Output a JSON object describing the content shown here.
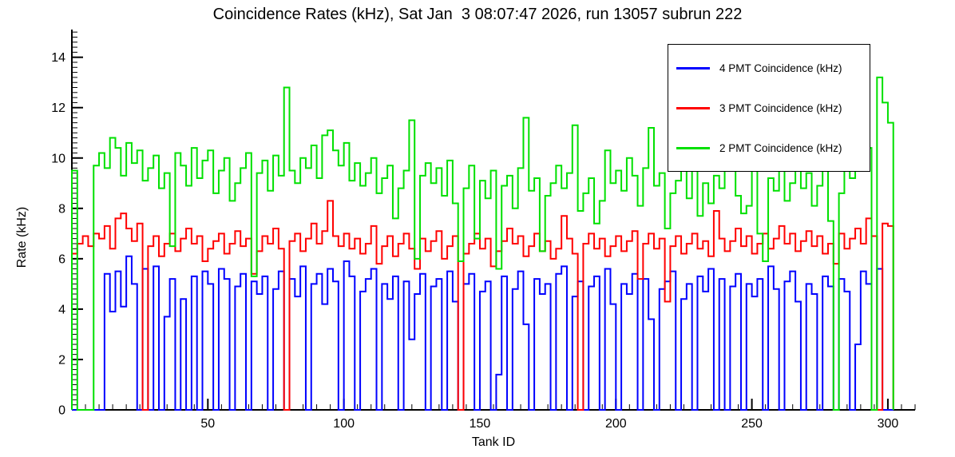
{
  "chart_data": {
    "type": "line",
    "subtype": "step-histogram",
    "title": "Coincidence Rates (kHz), Sat Jan  3 08:07:47 2026, run 13057 subrun 222",
    "xlabel": "Tank ID",
    "ylabel": "Rate (kHz)",
    "xlim": [
      0,
      310
    ],
    "ylim": [
      0,
      15.1
    ],
    "x_ticks_major": [
      50,
      100,
      150,
      200,
      250,
      300
    ],
    "x_minor_step": 5,
    "y_ticks_major": [
      0,
      2,
      4,
      6,
      8,
      10,
      12,
      14
    ],
    "y_minor_step": 0.2,
    "grid": false,
    "legend_position": "top-right",
    "bins": {
      "x_start": 0,
      "x_step": 2,
      "count": 151
    },
    "series": [
      {
        "name": "4 PMT Coincidence (kHz)",
        "color": "#0000ff",
        "values": [
          0,
          0,
          0,
          0,
          0,
          0,
          5.4,
          3.9,
          5.5,
          4.1,
          6.1,
          5.0,
          0,
          5.6,
          0,
          5.7,
          0,
          3.7,
          5.2,
          0,
          4.4,
          0,
          5.3,
          0,
          5.5,
          5.0,
          0,
          5.6,
          5.2,
          0,
          4.9,
          5.4,
          0,
          5.1,
          4.6,
          5.3,
          0,
          4.8,
          5.5,
          0,
          5.2,
          4.5,
          5.7,
          0,
          5.0,
          5.4,
          4.2,
          5.6,
          5.1,
          0,
          5.9,
          5.3,
          0,
          4.7,
          5.2,
          5.6,
          0,
          5.0,
          4.4,
          5.3,
          0,
          5.1,
          2.8,
          4.6,
          5.4,
          0,
          4.9,
          5.2,
          0,
          5.5,
          4.3,
          0,
          5.0,
          5.4,
          0,
          4.7,
          5.1,
          0,
          1.4,
          5.3,
          0,
          4.8,
          5.5,
          3.4,
          0,
          5.2,
          4.6,
          5.0,
          0,
          5.4,
          5.7,
          0,
          4.5,
          5.1,
          0,
          4.9,
          5.3,
          0,
          5.6,
          4.2,
          0,
          5.0,
          4.6,
          5.4,
          0,
          5.2,
          3.6,
          0,
          4.8,
          5.1,
          5.5,
          0,
          4.4,
          5.0,
          0,
          5.3,
          4.7,
          5.6,
          0,
          5.2,
          0,
          4.9,
          5.4,
          0,
          5.0,
          4.5,
          5.2,
          0,
          5.7,
          4.8,
          0,
          5.1,
          5.5,
          4.3,
          0,
          5.0,
          4.6,
          0,
          5.3,
          4.9,
          0,
          5.2,
          4.7,
          0,
          2.6,
          5.5,
          5.0,
          0,
          5.6,
          0,
          0
        ]
      },
      {
        "name": "3 PMT Coincidence (kHz)",
        "color": "#ff0000",
        "values": [
          6.2,
          6.6,
          6.9,
          6.5,
          7.0,
          6.8,
          7.3,
          6.4,
          7.6,
          7.8,
          7.2,
          6.7,
          7.4,
          0,
          6.5,
          6.9,
          6.1,
          6.6,
          7.0,
          6.3,
          6.8,
          7.2,
          6.6,
          6.9,
          5.9,
          6.4,
          6.7,
          7.0,
          6.2,
          6.6,
          7.1,
          6.5,
          6.8,
          5.4,
          6.3,
          6.9,
          6.6,
          7.2,
          6.4,
          0,
          6.7,
          7.0,
          6.3,
          6.8,
          7.4,
          6.6,
          7.1,
          8.3,
          6.9,
          6.5,
          7.0,
          6.4,
          6.8,
          6.2,
          6.6,
          7.3,
          5.8,
          6.5,
          6.9,
          6.1,
          6.6,
          7.0,
          6.4,
          5.6,
          6.8,
          6.3,
          6.7,
          7.1,
          6.0,
          6.5,
          6.9,
          0,
          6.2,
          6.6,
          7.0,
          6.4,
          6.8,
          5.7,
          6.3,
          6.7,
          7.2,
          6.6,
          6.9,
          6.1,
          6.5,
          7.0,
          6.3,
          6.7,
          6.0,
          6.4,
          7.7,
          6.8,
          6.2,
          0,
          6.6,
          7.0,
          6.4,
          6.8,
          6.1,
          6.5,
          6.9,
          6.3,
          6.7,
          7.1,
          5.2,
          6.6,
          7.0,
          6.4,
          6.8,
          4.3,
          6.5,
          6.9,
          6.2,
          6.6,
          7.0,
          6.4,
          6.7,
          6.1,
          7.9,
          6.8,
          6.3,
          6.7,
          7.2,
          6.5,
          6.9,
          6.2,
          6.6,
          7.0,
          6.4,
          6.8,
          7.3,
          6.6,
          7.0,
          6.3,
          6.7,
          7.1,
          6.5,
          6.9,
          6.2,
          6.6,
          5.8,
          7.0,
          6.4,
          6.8,
          7.2,
          6.6,
          7.6,
          6.9,
          0,
          7.4,
          7.3
        ]
      },
      {
        "name": "2 PMT Coincidence (kHz)",
        "color": "#00e000",
        "values": [
          9.5,
          0,
          0,
          0,
          9.7,
          10.2,
          9.6,
          10.8,
          10.4,
          9.3,
          10.6,
          9.8,
          10.3,
          9.1,
          9.6,
          10.1,
          8.8,
          9.4,
          6.5,
          10.2,
          9.7,
          8.9,
          10.4,
          9.2,
          9.9,
          10.3,
          8.6,
          9.5,
          10.0,
          8.3,
          9.0,
          9.6,
          10.2,
          5.3,
          9.4,
          9.9,
          8.7,
          10.1,
          9.3,
          12.8,
          9.5,
          9.0,
          10.0,
          9.6,
          10.5,
          9.2,
          10.9,
          11.1,
          10.3,
          9.7,
          10.6,
          9.1,
          9.8,
          8.9,
          9.4,
          10.0,
          8.6,
          9.2,
          9.7,
          7.6,
          8.8,
          9.5,
          11.5,
          6.0,
          9.3,
          9.8,
          9.0,
          9.6,
          8.5,
          9.9,
          8.2,
          5.9,
          8.8,
          9.7,
          6.8,
          9.1,
          8.4,
          9.5,
          5.6,
          8.9,
          9.3,
          8.0,
          9.6,
          11.6,
          8.7,
          9.2,
          6.3,
          8.5,
          9.0,
          9.7,
          8.8,
          9.4,
          11.3,
          7.9,
          8.6,
          9.2,
          7.4,
          8.3,
          10.3,
          9.0,
          9.5,
          8.7,
          10.0,
          9.3,
          8.1,
          9.6,
          11.2,
          8.9,
          9.4,
          7.2,
          8.6,
          9.1,
          9.8,
          8.4,
          9.5,
          7.7,
          9.0,
          8.2,
          9.3,
          8.8,
          10.6,
          9.7,
          8.5,
          7.8,
          8.1,
          9.9,
          7.0,
          5.9,
          9.2,
          8.7,
          9.6,
          8.3,
          9.0,
          10.2,
          8.8,
          9.4,
          8.1,
          8.9,
          9.5,
          7.5,
          0,
          8.6,
          9.8,
          9.2,
          10.7,
          9.5,
          10.4,
          0,
          13.2,
          12.2,
          11.4
        ]
      }
    ]
  }
}
